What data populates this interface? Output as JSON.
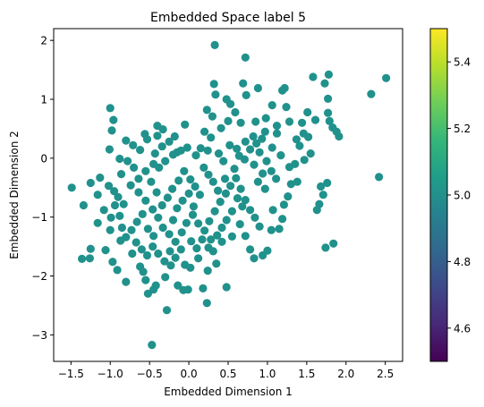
{
  "chart_data": {
    "type": "scatter",
    "title": "Embedded Space label 5",
    "xlabel": "Embedded Dimension 1",
    "ylabel": "Embedded Dimension 2",
    "xlim": [
      -1.72,
      2.72
    ],
    "ylim": [
      -3.45,
      2.2
    ],
    "xticks": [
      -1.5,
      -1.0,
      -0.5,
      0.0,
      0.5,
      1.0,
      1.5,
      2.0,
      2.5
    ],
    "xtick_labels": [
      "−1.5",
      "−1.0",
      "−0.5",
      "0.0",
      "0.5",
      "1.0",
      "1.5",
      "2.0",
      "2.5"
    ],
    "yticks": [
      -3,
      -2,
      -1,
      0,
      1,
      2
    ],
    "ytick_labels": [
      "−3",
      "−2",
      "−1",
      "0",
      "1",
      "2"
    ],
    "grid": false,
    "point_color": "#21918c",
    "colorbar": {
      "range": [
        4.5,
        5.5
      ],
      "ticks": [
        4.6,
        4.8,
        5.0,
        5.2,
        5.4
      ],
      "tick_labels": [
        "4.6",
        "4.8",
        "5.0",
        "5.2",
        "5.4"
      ],
      "colormap": "viridis",
      "colors": [
        "#440154",
        "#482878",
        "#3e4989",
        "#31688e",
        "#26828e",
        "#1f9e89",
        "#35b779",
        "#6ece58",
        "#b5de2b",
        "#fde725"
      ]
    },
    "points": [
      [
        0.33,
        1.92
      ],
      [
        0.72,
        1.71
      ],
      [
        -0.47,
        -3.17
      ],
      [
        -0.28,
        -2.58
      ],
      [
        0.23,
        -2.46
      ],
      [
        2.51,
        1.36
      ],
      [
        2.32,
        1.09
      ],
      [
        2.42,
        -0.32
      ],
      [
        1.78,
        1.42
      ],
      [
        1.73,
        1.27
      ],
      [
        1.58,
        1.38
      ],
      [
        1.77,
        1.01
      ],
      [
        1.88,
        0.45
      ],
      [
        1.91,
        0.37
      ],
      [
        1.83,
        0.52
      ],
      [
        1.79,
        0.63
      ],
      [
        1.77,
        0.77
      ],
      [
        1.61,
        0.65
      ],
      [
        1.51,
        0.78
      ],
      [
        1.46,
        0.42
      ],
      [
        1.52,
        0.36
      ],
      [
        1.41,
        0.21
      ],
      [
        1.47,
        -0.03
      ],
      [
        1.55,
        0.08
      ],
      [
        1.76,
        -0.42
      ],
      [
        1.68,
        -0.48
      ],
      [
        1.71,
        -0.62
      ],
      [
        1.66,
        -0.78
      ],
      [
        1.74,
        -1.52
      ],
      [
        1.84,
        -1.45
      ],
      [
        1.63,
        -0.88
      ],
      [
        1.22,
        1.19
      ],
      [
        1.19,
        1.15
      ],
      [
        1.24,
        0.87
      ],
      [
        1.06,
        0.9
      ],
      [
        0.88,
        1.19
      ],
      [
        0.69,
        1.27
      ],
      [
        0.73,
        1.07
      ],
      [
        0.85,
        0.62
      ],
      [
        0.97,
        0.45
      ],
      [
        1.12,
        0.55
      ],
      [
        1.28,
        0.62
      ],
      [
        0.32,
        1.26
      ],
      [
        0.34,
        1.08
      ],
      [
        0.48,
        1.0
      ],
      [
        0.53,
        0.92
      ],
      [
        0.3,
        0.71
      ],
      [
        0.5,
        0.63
      ],
      [
        0.59,
        0.78
      ],
      [
        0.23,
        0.82
      ],
      [
        -0.05,
        0.57
      ],
      [
        -0.18,
        0.37
      ],
      [
        -0.4,
        0.55
      ],
      [
        -0.33,
        0.49
      ],
      [
        -0.56,
        0.41
      ],
      [
        -0.53,
        0.32
      ],
      [
        -0.96,
        0.65
      ],
      [
        -1.0,
        0.85
      ],
      [
        -0.98,
        0.47
      ],
      [
        -1.01,
        0.15
      ],
      [
        -1.49,
        -0.5
      ],
      [
        -1.34,
        -0.8
      ],
      [
        -1.25,
        -0.42
      ],
      [
        -1.16,
        -0.62
      ],
      [
        -1.13,
        -0.33
      ],
      [
        -1.02,
        -0.47
      ],
      [
        -0.95,
        -0.56
      ],
      [
        -0.94,
        -0.8
      ],
      [
        -1.08,
        -0.88
      ],
      [
        -0.99,
        -1.01
      ],
      [
        -1.16,
        -1.1
      ],
      [
        -1.0,
        -1.22
      ],
      [
        -0.88,
        -0.98
      ],
      [
        -0.87,
        -1.4
      ],
      [
        -1.06,
        -1.56
      ],
      [
        -1.25,
        -1.54
      ],
      [
        -1.26,
        -1.7
      ],
      [
        -1.36,
        -1.71
      ],
      [
        -0.97,
        -1.76
      ],
      [
        -0.91,
        -1.9
      ],
      [
        -0.8,
        -2.1
      ],
      [
        -0.72,
        -1.62
      ],
      [
        -0.62,
        -1.84
      ],
      [
        -0.58,
        -1.93
      ],
      [
        -0.55,
        -2.07
      ],
      [
        -0.52,
        -2.3
      ],
      [
        -0.45,
        -2.23
      ],
      [
        -0.42,
        -2.16
      ],
      [
        -0.3,
        -2.02
      ],
      [
        -0.23,
        -1.82
      ],
      [
        -0.14,
        -2.16
      ],
      [
        -0.07,
        -2.24
      ],
      [
        -0.01,
        -2.23
      ],
      [
        0.02,
        -1.86
      ],
      [
        -0.05,
        -1.81
      ],
      [
        0.18,
        -2.21
      ],
      [
        0.24,
        -1.91
      ],
      [
        0.35,
        -1.79
      ],
      [
        0.48,
        -2.19
      ],
      [
        0.12,
        -1.7
      ],
      [
        0.25,
        -1.52
      ],
      [
        0.31,
        -1.58
      ],
      [
        0.28,
        -1.38
      ],
      [
        0.42,
        -1.42
      ],
      [
        0.55,
        -1.33
      ],
      [
        0.65,
        -1.12
      ],
      [
        0.72,
        -1.32
      ],
      [
        0.78,
        -1.55
      ],
      [
        0.83,
        -1.7
      ],
      [
        0.94,
        -1.65
      ],
      [
        1.0,
        -1.57
      ],
      [
        1.05,
        -1.22
      ],
      [
        1.15,
        -1.2
      ],
      [
        1.19,
        -1.03
      ],
      [
        1.07,
        -0.88
      ],
      [
        1.21,
        -0.79
      ],
      [
        1.26,
        -0.65
      ],
      [
        1.3,
        -0.44
      ],
      [
        1.38,
        -0.4
      ],
      [
        0.97,
        -0.52
      ],
      [
        0.88,
        -0.4
      ],
      [
        0.83,
        -0.11
      ],
      [
        0.9,
        0.1
      ],
      [
        1.06,
        0.18
      ],
      [
        1.17,
        0.05
      ],
      [
        1.28,
        -0.15
      ],
      [
        1.37,
        0.32
      ],
      [
        1.12,
        0.42
      ],
      [
        0.82,
        0.37
      ],
      [
        0.72,
        0.28
      ],
      [
        0.61,
        0.16
      ],
      [
        0.52,
        0.22
      ],
      [
        0.44,
        -0.05
      ],
      [
        0.38,
        0.08
      ],
      [
        0.24,
        0.13
      ],
      [
        0.15,
        0.17
      ],
      [
        0.09,
        0.05
      ],
      [
        -0.02,
        0.18
      ],
      [
        -0.1,
        0.13
      ],
      [
        -0.2,
        0.06
      ],
      [
        -0.3,
        -0.05
      ],
      [
        -0.38,
        -0.16
      ],
      [
        -0.45,
        -0.1
      ],
      [
        -0.55,
        -0.22
      ],
      [
        -0.64,
        -0.35
      ],
      [
        -0.7,
        -0.16
      ],
      [
        -0.78,
        -0.05
      ],
      [
        -0.86,
        -0.27
      ],
      [
        -0.74,
        -0.46
      ],
      [
        -0.64,
        -0.58
      ],
      [
        -0.55,
        -0.72
      ],
      [
        -0.46,
        -0.87
      ],
      [
        -0.39,
        -1.01
      ],
      [
        -0.33,
        -1.18
      ],
      [
        -0.25,
        -1.29
      ],
      [
        -0.17,
        -1.42
      ],
      [
        -0.09,
        -1.26
      ],
      [
        -0.03,
        -1.1
      ],
      [
        0.05,
        -0.96
      ],
      [
        0.12,
        -1.11
      ],
      [
        0.2,
        -1.23
      ],
      [
        0.26,
        -1.07
      ],
      [
        0.33,
        -0.9
      ],
      [
        0.4,
        -0.74
      ],
      [
        0.47,
        -0.6
      ],
      [
        0.53,
        -0.47
      ],
      [
        0.6,
        -0.34
      ],
      [
        0.66,
        -0.52
      ],
      [
        0.72,
        -0.71
      ],
      [
        0.78,
        -0.88
      ],
      [
        0.84,
        -1.01
      ],
      [
        0.9,
        -1.16
      ],
      [
        0.55,
        -0.9
      ],
      [
        0.48,
        -1.05
      ],
      [
        0.42,
        -1.18
      ],
      [
        0.36,
        -1.31
      ],
      [
        0.14,
        -0.62
      ],
      [
        0.08,
        -0.48
      ],
      [
        0.02,
        -0.36
      ],
      [
        -0.06,
        -0.22
      ],
      [
        -0.13,
        -0.38
      ],
      [
        -0.21,
        -0.52
      ],
      [
        -0.27,
        -0.67
      ],
      [
        -0.34,
        -0.8
      ],
      [
        -0.41,
        -0.58
      ],
      [
        -0.48,
        -0.4
      ],
      [
        -0.59,
        -0.95
      ],
      [
        -0.66,
        -1.08
      ],
      [
        -0.73,
        -1.22
      ],
      [
        -0.8,
        -1.34
      ],
      [
        -0.85,
        -1.18
      ],
      [
        -0.9,
        -0.66
      ],
      [
        -0.83,
        -0.78
      ],
      [
        -0.67,
        -1.43
      ],
      [
        -0.6,
        -1.55
      ],
      [
        -0.53,
        -1.65
      ],
      [
        -0.46,
        -1.5
      ],
      [
        -0.39,
        -1.62
      ],
      [
        -0.31,
        -1.75
      ],
      [
        -0.24,
        -1.58
      ],
      [
        -0.17,
        -1.69
      ],
      [
        -0.1,
        -1.55
      ],
      [
        0.03,
        -1.41
      ],
      [
        0.1,
        -1.53
      ],
      [
        0.17,
        -1.38
      ],
      [
        0.58,
        -0.18
      ],
      [
        0.64,
        0.04
      ],
      [
        0.71,
        -0.02
      ],
      [
        0.78,
        0.15
      ],
      [
        0.86,
        0.25
      ],
      [
        0.93,
        0.33
      ],
      [
        0.99,
        -0.05
      ],
      [
        1.05,
        -0.22
      ],
      [
        1.11,
        -0.35
      ],
      [
        0.94,
        -0.26
      ],
      [
        0.31,
        -0.4
      ],
      [
        0.25,
        -0.28
      ],
      [
        0.19,
        -0.16
      ],
      [
        0.28,
        0.35
      ],
      [
        0.2,
        0.45
      ],
      [
        -0.25,
        0.28
      ],
      [
        -0.34,
        0.2
      ],
      [
        -0.43,
        0.08
      ],
      [
        -0.62,
        0.14
      ],
      [
        -0.71,
        0.22
      ],
      [
        -0.8,
        0.3
      ],
      [
        -0.88,
        -0.01
      ],
      [
        -0.4,
        0.38
      ],
      [
        -0.15,
        -0.85
      ],
      [
        -0.08,
        -0.72
      ],
      [
        0.06,
        -0.82
      ],
      [
        0.0,
        -0.6
      ],
      [
        -0.52,
        -1.2
      ],
      [
        -0.45,
        -1.32
      ],
      [
        -0.2,
        -1.05
      ],
      [
        0.62,
        -0.68
      ],
      [
        0.68,
        -0.82
      ],
      [
        0.46,
        -0.35
      ],
      [
        0.37,
        -0.55
      ],
      [
        -0.15,
        0.1
      ],
      [
        1.35,
        -0.1
      ],
      [
        1.44,
        0.6
      ],
      [
        0.98,
        0.68
      ],
      [
        0.66,
        0.6
      ],
      [
        0.41,
        0.51
      ]
    ]
  }
}
